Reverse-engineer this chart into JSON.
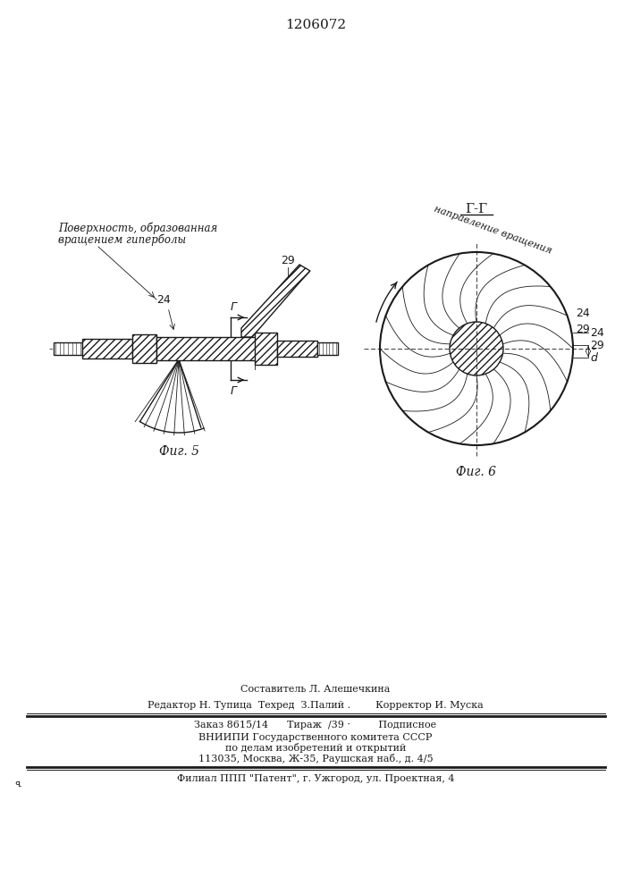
{
  "patent_number": "1206072",
  "background_color": "#ffffff",
  "line_color": "#1a1a1a",
  "fig_width": 7.07,
  "fig_height": 10.0,
  "label_surface": "Поверхность, образованная",
  "label_surface2": "вращением гиперболы",
  "label_rotation": "направление вращения",
  "label_fig5": "Фиг. 5",
  "label_fig6": "Фиг. 6",
  "label_GG": "Г-Г",
  "label_24": "24",
  "label_29": "29",
  "label_d": "d",
  "label_G": "Г",
  "footer_line1": "Составитель Л. Алешечкина",
  "footer_line2": "Редактор Н. Тупица  Техред  З.Палий .        Корректор И. Муска",
  "footer_line3": "Заказ 8615/14      Тираж  /39 ·         Подписное",
  "footer_line4": "ВНИИПИ Государственного комитета СССР",
  "footer_line5": "по делам изобретений и открытий",
  "footer_line6": "113035, Москва, Ж-35, Раушская наб., д. 4/5",
  "footer_line7": "Филиал ППП \"Патент\", г. Ужгород, ул. Проектная, 4"
}
